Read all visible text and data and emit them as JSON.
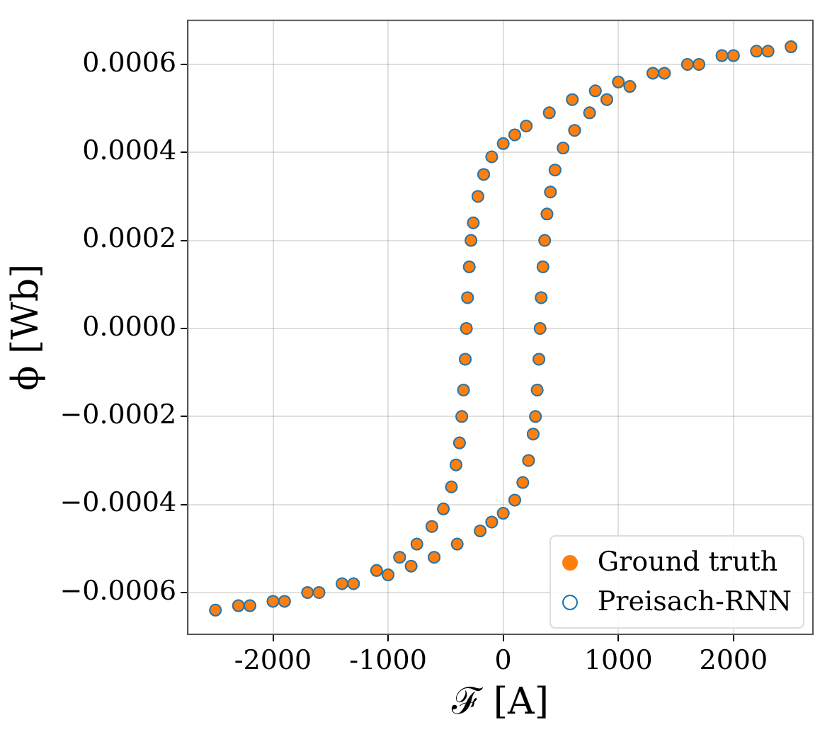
{
  "chart_data": {
    "type": "scatter",
    "xlabel": "ℱ [A]",
    "ylabel": "ϕ [Wb]",
    "xlim": [
      -2740,
      2690
    ],
    "ylim": [
      -0.000695,
      0.0007
    ],
    "xticks": [
      -2000,
      -1000,
      0,
      1000,
      2000
    ],
    "yticks": [
      {
        "value": -0.0006,
        "label": "−0.0006"
      },
      {
        "value": -0.0004,
        "label": "−0.0004"
      },
      {
        "value": -0.0002,
        "label": "−0.0002"
      },
      {
        "value": 0,
        "label": "0.0000"
      },
      {
        "value": 0.0002,
        "label": "0.0002"
      },
      {
        "value": 0.0004,
        "label": "0.0004"
      },
      {
        "value": 0.0006,
        "label": "0.0006"
      }
    ],
    "grid": true,
    "legend": "bottom right",
    "marker": "circle",
    "series": [
      {
        "name": "Ground truth",
        "color": "#ff7f0e",
        "x": [
          2500,
          2200,
          1900,
          1600,
          1300,
          1000,
          800,
          600,
          400,
          200,
          100,
          0,
          -100,
          -170,
          -220,
          -260,
          -280,
          -295,
          -310,
          -320,
          -330,
          -345,
          -360,
          -380,
          -410,
          -450,
          -520,
          -620,
          -750,
          -900,
          -1100,
          -1400,
          -1700,
          -2000,
          -2300,
          -2500,
          -2200,
          -1900,
          -1600,
          -1300,
          -1000,
          -800,
          -600,
          -400,
          -200,
          -100,
          0,
          100,
          170,
          220,
          260,
          280,
          295,
          310,
          320,
          330,
          345,
          360,
          380,
          410,
          450,
          520,
          620,
          750,
          900,
          1100,
          1400,
          1700,
          2000,
          2300
        ],
        "values": [
          0.00064,
          0.00063,
          0.00062,
          0.0006,
          0.00058,
          0.00056,
          0.00054,
          0.00052,
          0.00049,
          0.00046,
          0.00044,
          0.00042,
          0.00039,
          0.00035,
          0.0003,
          0.00024,
          0.0002,
          0.00014,
          7e-05,
          0,
          -7e-05,
          -0.00014,
          -0.0002,
          -0.00026,
          -0.00031,
          -0.00036,
          -0.00041,
          -0.00045,
          -0.00049,
          -0.00052,
          -0.00055,
          -0.00058,
          -0.0006,
          -0.00062,
          -0.00063,
          -0.00064,
          -0.00063,
          -0.00062,
          -0.0006,
          -0.00058,
          -0.00056,
          -0.00054,
          -0.00052,
          -0.00049,
          -0.00046,
          -0.00044,
          -0.00042,
          -0.00039,
          -0.00035,
          -0.0003,
          -0.00024,
          -0.0002,
          -0.00014,
          -7e-05,
          0,
          7e-05,
          0.00014,
          0.0002,
          0.00026,
          0.00031,
          0.00036,
          0.00041,
          0.00045,
          0.00049,
          0.00052,
          0.00055,
          0.00058,
          0.0006,
          0.00062,
          0.00063
        ]
      },
      {
        "name": "Preisach-RNN",
        "color": "#1f77b4",
        "x": [
          2500,
          2200,
          1900,
          1600,
          1300,
          1000,
          800,
          600,
          400,
          200,
          100,
          0,
          -100,
          -170,
          -220,
          -260,
          -280,
          -295,
          -310,
          -320,
          -330,
          -345,
          -360,
          -380,
          -410,
          -450,
          -520,
          -620,
          -750,
          -900,
          -1100,
          -1400,
          -1700,
          -2000,
          -2300,
          -2500,
          -2200,
          -1900,
          -1600,
          -1300,
          -1000,
          -800,
          -600,
          -400,
          -200,
          -100,
          0,
          100,
          170,
          220,
          260,
          280,
          295,
          310,
          320,
          330,
          345,
          360,
          380,
          410,
          450,
          520,
          620,
          750,
          900,
          1100,
          1400,
          1700,
          2000,
          2300
        ],
        "values": [
          0.00064,
          0.00063,
          0.00062,
          0.0006,
          0.00058,
          0.00056,
          0.00054,
          0.00052,
          0.00049,
          0.00046,
          0.00044,
          0.00042,
          0.00039,
          0.00035,
          0.0003,
          0.00024,
          0.0002,
          0.00014,
          7e-05,
          0,
          -7e-05,
          -0.00014,
          -0.0002,
          -0.00026,
          -0.00031,
          -0.00036,
          -0.00041,
          -0.00045,
          -0.00049,
          -0.00052,
          -0.00055,
          -0.00058,
          -0.0006,
          -0.00062,
          -0.00063,
          -0.00064,
          -0.00063,
          -0.00062,
          -0.0006,
          -0.00058,
          -0.00056,
          -0.00054,
          -0.00052,
          -0.00049,
          -0.00046,
          -0.00044,
          -0.00042,
          -0.00039,
          -0.00035,
          -0.0003,
          -0.00024,
          -0.0002,
          -0.00014,
          -7e-05,
          0,
          7e-05,
          0.00014,
          0.0002,
          0.00026,
          0.00031,
          0.00036,
          0.00041,
          0.00045,
          0.00049,
          0.00052,
          0.00055,
          0.00058,
          0.0006,
          0.00062,
          0.00063
        ]
      }
    ]
  }
}
